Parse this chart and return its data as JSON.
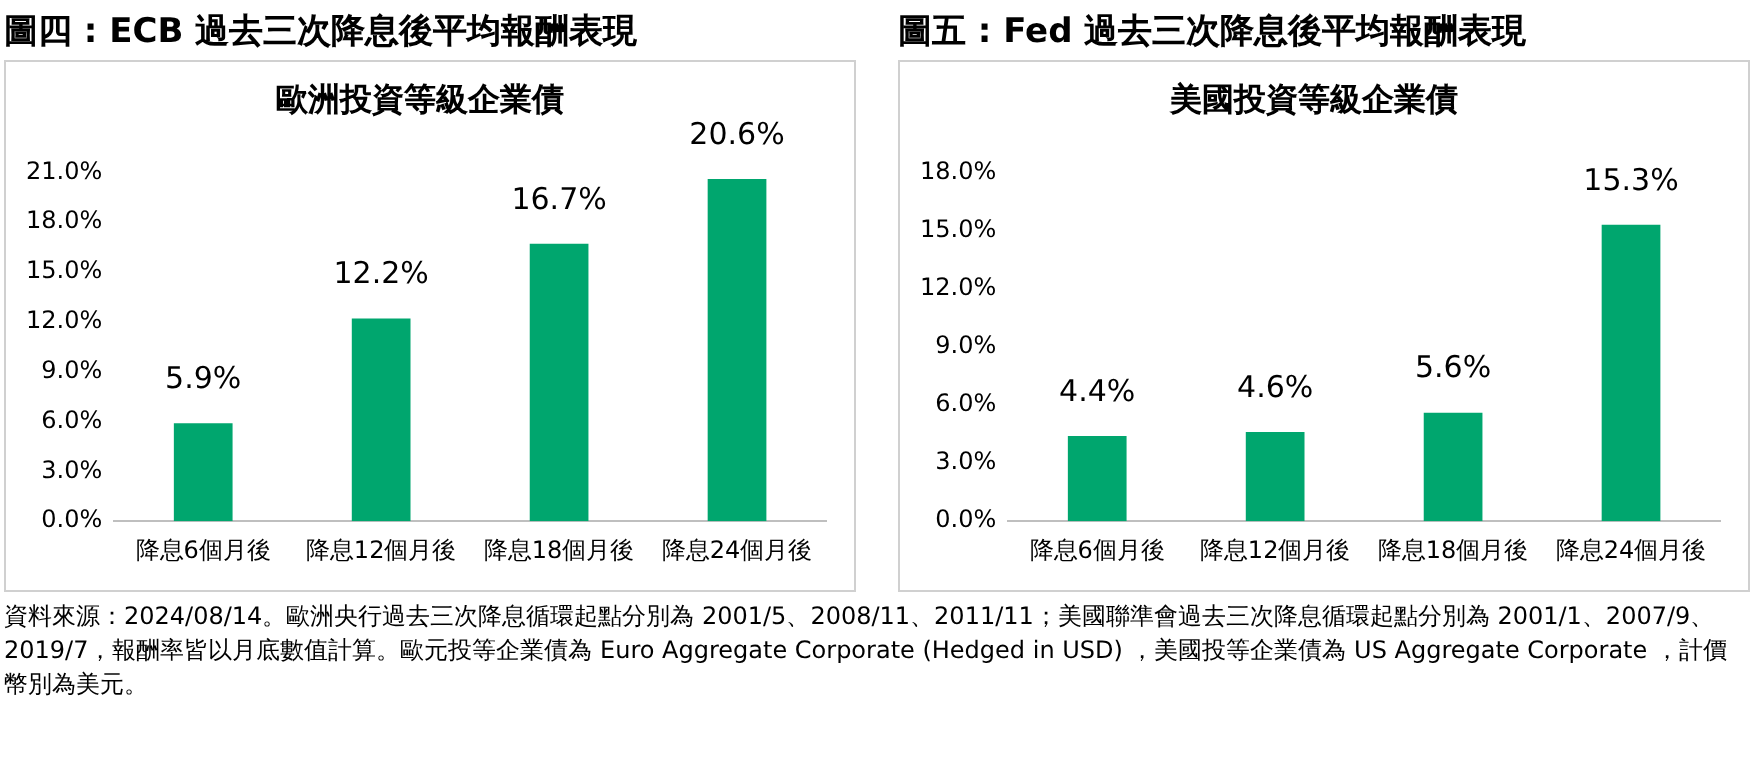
{
  "chart_data": [
    {
      "type": "bar",
      "title": "圖四 : ECB 過去三次降息後平均報酬表現",
      "subtitle": "歐洲投資等級企業債",
      "categories": [
        "降息6個月後",
        "降息12個月後",
        "降息18個月後",
        "降息24個月後"
      ],
      "values": [
        5.9,
        12.2,
        16.7,
        20.6
      ],
      "value_labels": [
        "5.9%",
        "12.2%",
        "16.7%",
        "20.6%"
      ],
      "color": "#00a66e",
      "ylim": [
        0,
        21
      ],
      "yticks": [
        {
          "value": 0,
          "label": "0.0%"
        },
        {
          "value": 3,
          "label": "3.0%"
        },
        {
          "value": 6,
          "label": "6.0%"
        },
        {
          "value": 9,
          "label": "9.0%"
        },
        {
          "value": 12,
          "label": "12.0%"
        },
        {
          "value": 15,
          "label": "15.0%"
        },
        {
          "value": 18,
          "label": "18.0%"
        },
        {
          "value": 21,
          "label": "21.0%"
        }
      ],
      "grid": false,
      "annotations": [
        "資料來源：2024/08/14。歐洲央行過去三次降息循環起點分別為 2001/5、2008/11、2011/11；美國聯準會過去三次降息循環起點分別為 2001/1、2007/9、2019/7，報酬率皆以月底數值計算。歐元投等企業債為 Euro Aggregate Corporate (Hedged in USD) ，美國投等企業債為 US Aggregate Corporate ，計價幣別為美元。"
      ]
    },
    {
      "type": "bar",
      "title": "圖五 : Fed 過去三次降息後平均報酬表現",
      "subtitle": "美國投資等級企業債",
      "categories": [
        "降息6個月後",
        "降息12個月後",
        "降息18個月後",
        "降息24個月後"
      ],
      "values": [
        4.4,
        4.6,
        5.6,
        15.3
      ],
      "value_labels": [
        "4.4%",
        "4.6%",
        "5.6%",
        "15.3%"
      ],
      "color": "#00a66e",
      "ylim": [
        0,
        18
      ],
      "yticks": [
        {
          "value": 0,
          "label": "0.0%"
        },
        {
          "value": 3,
          "label": "3.0%"
        },
        {
          "value": 6,
          "label": "6.0%"
        },
        {
          "value": 9,
          "label": "9.0%"
        },
        {
          "value": 12,
          "label": "12.0%"
        },
        {
          "value": 15,
          "label": "15.0%"
        },
        {
          "value": 18,
          "label": "18.0%"
        }
      ],
      "grid": false
    }
  ]
}
